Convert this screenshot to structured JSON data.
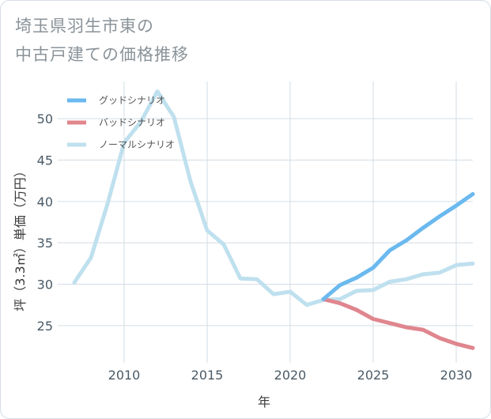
{
  "title_lines": [
    "埼玉県羽生市東の",
    "中古戸建ての価格推移"
  ],
  "chart_data": {
    "type": "line",
    "xlabel": "年",
    "ylabel": "坪（3.3㎡）単価（万円）",
    "xlim": [
      2006,
      2031
    ],
    "ylim": [
      20.5,
      54.5
    ],
    "xticks": [
      2010,
      2015,
      2020,
      2025,
      2030
    ],
    "yticks": [
      25,
      30,
      35,
      40,
      45,
      50
    ],
    "legend_position": "top-left",
    "grid": true,
    "series": [
      {
        "name": "グッドシナリオ",
        "color": "#6bb9ef",
        "x": [
          2022,
          2023,
          2024,
          2025,
          2026,
          2027,
          2028,
          2029,
          2030,
          2031
        ],
        "y": [
          28.2,
          29.9,
          30.8,
          32.0,
          34.1,
          35.3,
          36.8,
          38.2,
          39.5,
          40.9
        ]
      },
      {
        "name": "バッドシナリオ",
        "color": "#e0868e",
        "x": [
          2022,
          2023,
          2024,
          2025,
          2026,
          2027,
          2028,
          2029,
          2030,
          2031
        ],
        "y": [
          28.2,
          27.7,
          26.9,
          25.8,
          25.3,
          24.8,
          24.5,
          23.5,
          22.8,
          22.3
        ]
      },
      {
        "name": "ノーマルシナリオ",
        "color": "#bfe0ee",
        "x": [
          2007,
          2008,
          2009,
          2010,
          2011,
          2012,
          2013,
          2014,
          2015,
          2016,
          2017,
          2018,
          2019,
          2020,
          2021,
          2022,
          2023,
          2024,
          2025,
          2026,
          2027,
          2028,
          2029,
          2030,
          2031
        ],
        "y": [
          30.2,
          33.2,
          39.7,
          47.1,
          49.6,
          53.3,
          50.2,
          42.4,
          36.5,
          34.8,
          30.7,
          30.6,
          28.8,
          29.1,
          27.5,
          28.1,
          28.2,
          29.2,
          29.3,
          30.3,
          30.6,
          31.2,
          31.4,
          32.3,
          32.5
        ]
      }
    ]
  }
}
